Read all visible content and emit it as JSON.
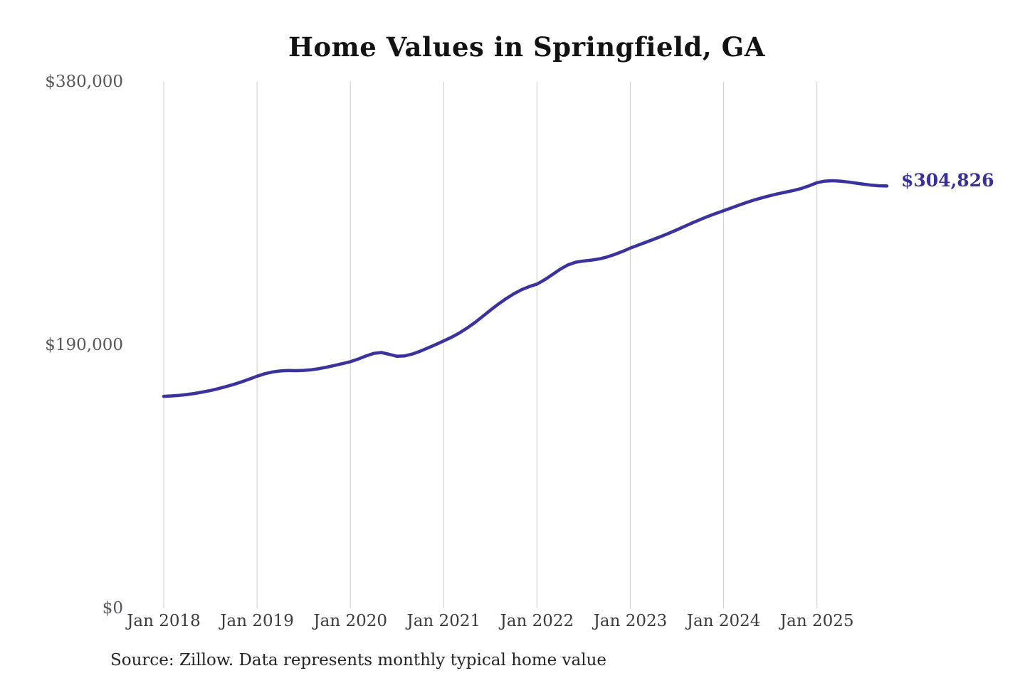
{
  "title": "Home Values in Springfield, GA",
  "source_note": "Source: Zillow. Data represents monthly typical home value",
  "colors": {
    "line": "#3a339e",
    "gridline": "#cccccc",
    "annotation": "#37309a",
    "y_tick_text": "#57575b",
    "x_tick_text": "#3b3b3d",
    "title_text": "#131313",
    "background": "#ffffff"
  },
  "chart_data": {
    "type": "line",
    "title": "Home Values in Springfield, GA",
    "xlabel": "",
    "ylabel": "",
    "ylim": [
      0,
      380000
    ],
    "y_ticks": [
      0,
      190000,
      380000
    ],
    "y_tick_labels": [
      "$0",
      "$190,000",
      "$380,000"
    ],
    "x_tick_labels": [
      "Jan 2018",
      "Jan 2019",
      "Jan 2020",
      "Jan 2021",
      "Jan 2022",
      "Jan 2023",
      "Jan 2024",
      "Jan 2025"
    ],
    "grid": "vertical-only",
    "legend": "none",
    "annotation": {
      "text": "$304,826",
      "value": 304826
    },
    "series": [
      {
        "name": "Monthly typical home value (USD)",
        "start_month": "2018-01",
        "end_month": "2025-10",
        "points_per_year": 12,
        "values_usd": [
          153000,
          153300,
          153700,
          154300,
          155100,
          156100,
          157200,
          158500,
          160000,
          161600,
          163400,
          165400,
          167500,
          169300,
          170600,
          171300,
          171600,
          171500,
          171700,
          172200,
          173000,
          174100,
          175300,
          176600,
          178000,
          179900,
          182100,
          184000,
          184600,
          183300,
          181900,
          182200,
          183600,
          185600,
          188000,
          190400,
          193000,
          195600,
          198700,
          202200,
          206200,
          210600,
          215100,
          219400,
          223400,
          226900,
          229900,
          232200,
          234000,
          237200,
          241000,
          244800,
          247900,
          249800,
          250700,
          251300,
          252200,
          253500,
          255400,
          257600,
          260000,
          262100,
          264200,
          266300,
          268500,
          270800,
          273200,
          275700,
          278200,
          280600,
          282900,
          285000,
          287000,
          289000,
          291000,
          293000,
          294800,
          296400,
          297900,
          299200,
          300400,
          301600,
          303000,
          305000,
          307200,
          308300,
          308600,
          308300,
          307700,
          306900,
          306100,
          305400,
          305000,
          304826
        ]
      }
    ]
  }
}
